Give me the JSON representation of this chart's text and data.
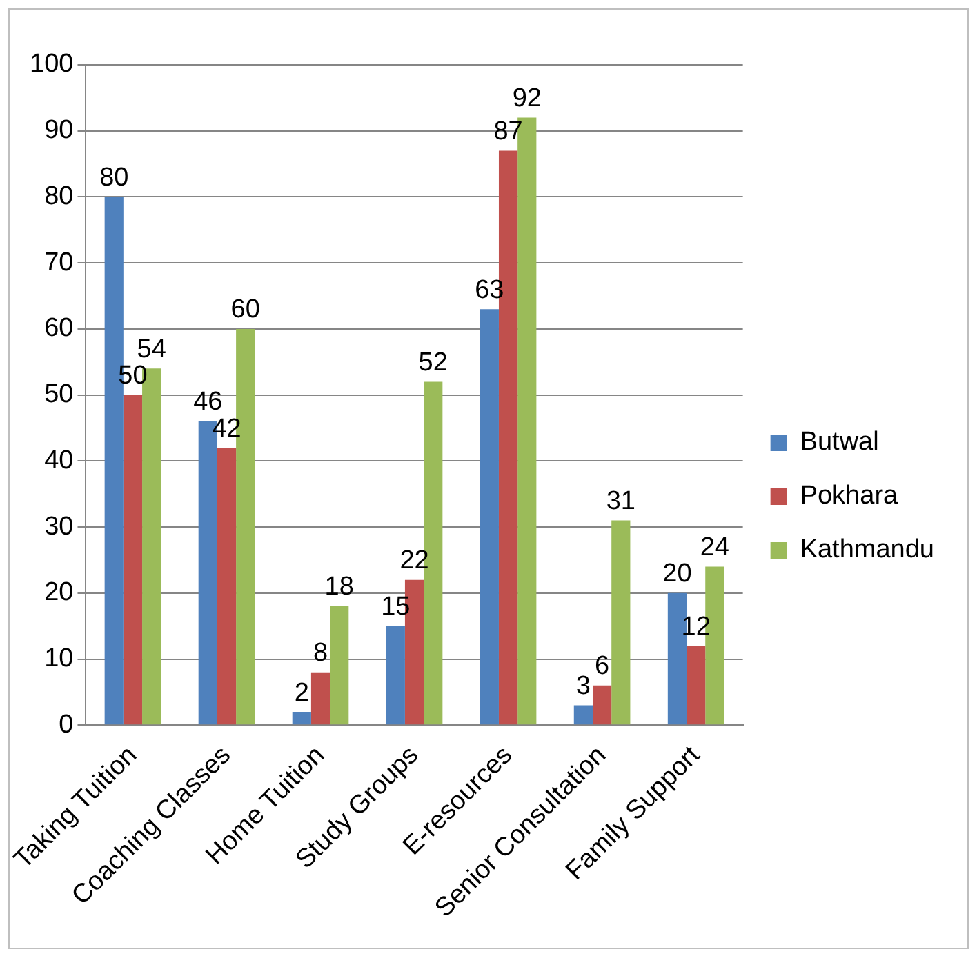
{
  "chart_data": {
    "type": "bar",
    "categories": [
      "Taking Tuition",
      "Coaching Classes",
      "Home Tuition",
      "Study Groups",
      "E-resources",
      "Senior Consultation",
      "Family Support"
    ],
    "series": [
      {
        "name": "Butwal",
        "color": "#4f81bd",
        "values": [
          80,
          46,
          2,
          15,
          63,
          3,
          20
        ]
      },
      {
        "name": "Pokhara",
        "color": "#c0504d",
        "values": [
          50,
          42,
          8,
          22,
          87,
          6,
          12
        ]
      },
      {
        "name": "Kathmandu",
        "color": "#9bbb59",
        "values": [
          54,
          60,
          18,
          52,
          92,
          31,
          24
        ]
      }
    ],
    "ylim": [
      0,
      100
    ],
    "yticks": [
      0,
      10,
      20,
      30,
      40,
      50,
      60,
      70,
      80,
      90,
      100
    ],
    "grid": "y",
    "legend": "right",
    "data_labels": true
  }
}
